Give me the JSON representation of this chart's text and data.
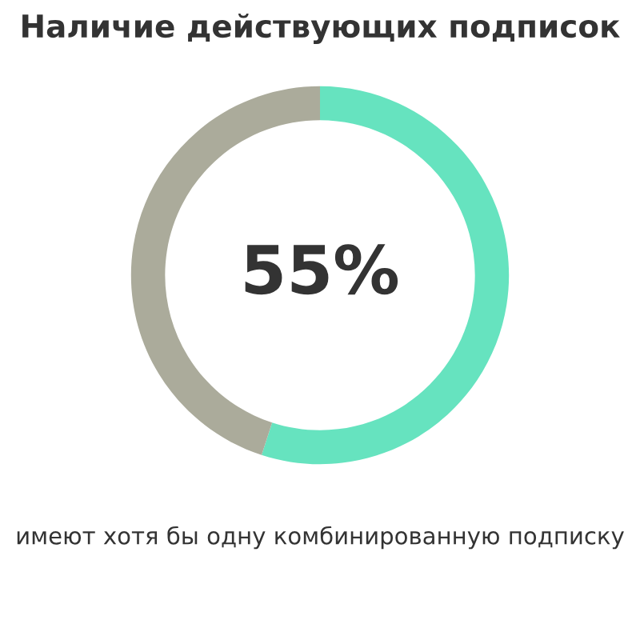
{
  "chart_data": {
    "type": "donut",
    "title": "Наличие действующих подписок",
    "categories": [
      null,
      null
    ],
    "values": [
      55,
      45
    ],
    "colors": [
      "#66e3bf",
      "#abab9b"
    ],
    "value_labels": [
      "55%",
      null
    ],
    "annotations": [
      "имеют хотя бы одну комбинированную подписку"
    ]
  }
}
